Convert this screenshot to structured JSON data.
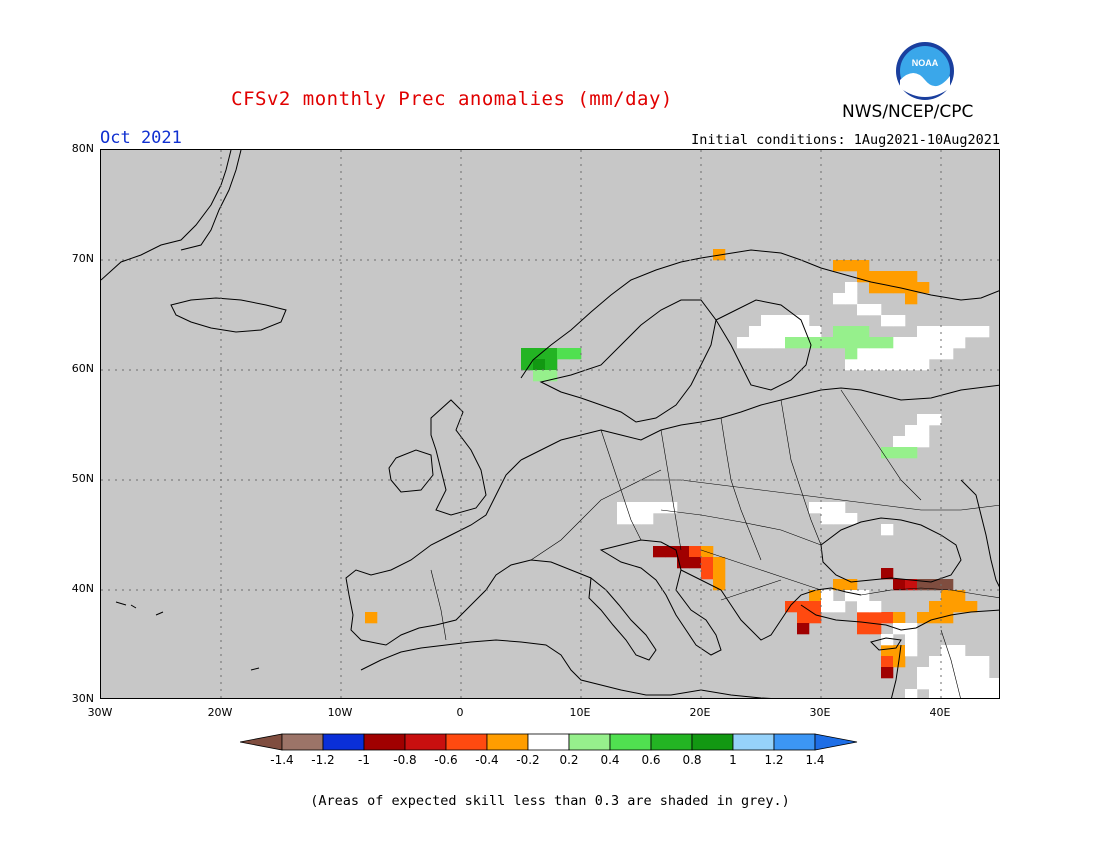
{
  "header": {
    "title": "CFSv2 monthly Prec anomalies (mm/day)",
    "agency": "NWS/NCEP/CPC",
    "logo_text": "NOAA",
    "month": "Oct 2021",
    "initial_conditions": "Initial conditions: 1Aug2021-10Aug2021"
  },
  "map": {
    "projection": "lat-lon",
    "lon_range": [
      -30,
      45
    ],
    "lat_range": [
      30,
      80
    ],
    "gridlines": "dotted",
    "no_skill_color": "#c7c7c7",
    "lat_labels": [
      "80N",
      "70N",
      "60N",
      "50N",
      "40N",
      "30N"
    ],
    "lon_labels": [
      "30W",
      "20W",
      "10W",
      "0",
      "10E",
      "20E",
      "30E",
      "40E"
    ],
    "lat_values": [
      80,
      70,
      60,
      50,
      40,
      30
    ],
    "lon_values": [
      -30,
      -20,
      -10,
      0,
      10,
      20,
      30,
      40
    ]
  },
  "anomaly_cells": [
    {
      "lon": 21.5,
      "lat": 70.5,
      "v": -0.4
    },
    {
      "lon": 31.5,
      "lat": 69.5,
      "v": -0.4
    },
    {
      "lon": 32.5,
      "lat": 69.5,
      "v": -0.4
    },
    {
      "lon": 33.5,
      "lat": 69.5,
      "v": -0.4
    },
    {
      "lon": 34.5,
      "lat": 68.5,
      "v": -0.4
    },
    {
      "lon": 35.5,
      "lat": 68.5,
      "v": -0.4
    },
    {
      "lon": 36.5,
      "lat": 68.5,
      "v": -0.4
    },
    {
      "lon": 37.5,
      "lat": 68.5,
      "v": -0.4
    },
    {
      "lon": 33.5,
      "lat": 68.5,
      "v": -0.4
    },
    {
      "lon": 34.5,
      "lat": 67.5,
      "v": -0.4
    },
    {
      "lon": 35.5,
      "lat": 67.5,
      "v": -0.4
    },
    {
      "lon": 36.5,
      "lat": 67.5,
      "v": -0.4
    },
    {
      "lon": 37.5,
      "lat": 67.5,
      "v": -0.4
    },
    {
      "lon": 38.5,
      "lat": 67.5,
      "v": -0.4
    },
    {
      "lon": 37.5,
      "lat": 66.5,
      "v": -0.4
    },
    {
      "lon": 32.5,
      "lat": 67.5,
      "v": -0.2
    },
    {
      "lon": 31.5,
      "lat": 66.5,
      "v": -0.2
    },
    {
      "lon": 32.5,
      "lat": 66.5,
      "v": -0.2
    },
    {
      "lon": 33.5,
      "lat": 65.5,
      "v": -0.2
    },
    {
      "lon": 34.5,
      "lat": 65.5,
      "v": -0.2
    },
    {
      "lon": 35.5,
      "lat": 64.5,
      "v": -0.2
    },
    {
      "lon": 36.5,
      "lat": 64.5,
      "v": -0.2
    },
    {
      "lon": 25.5,
      "lat": 64.5,
      "v": -0.2
    },
    {
      "lon": 26.5,
      "lat": 64.5,
      "v": -0.2
    },
    {
      "lon": 27.5,
      "lat": 64.5,
      "v": -0.2
    },
    {
      "lon": 28.5,
      "lat": 64.5,
      "v": -0.2
    },
    {
      "lon": 29.5,
      "lat": 63.5,
      "v": -0.2
    },
    {
      "lon": 24.5,
      "lat": 63.5,
      "v": -0.2
    },
    {
      "lon": 25.5,
      "lat": 63.5,
      "v": -0.2
    },
    {
      "lon": 26.5,
      "lat": 63.5,
      "v": -0.2
    },
    {
      "lon": 27.5,
      "lat": 63.5,
      "v": -0.2
    },
    {
      "lon": 28.5,
      "lat": 63.5,
      "v": -0.2
    },
    {
      "lon": 23.5,
      "lat": 62.5,
      "v": -0.2
    },
    {
      "lon": 24.5,
      "lat": 62.5,
      "v": -0.2
    },
    {
      "lon": 25.5,
      "lat": 62.5,
      "v": -0.2
    },
    {
      "lon": 26.5,
      "lat": 62.5,
      "v": -0.2
    },
    {
      "lon": 38.5,
      "lat": 63.5,
      "v": -0.2
    },
    {
      "lon": 39.5,
      "lat": 63.5,
      "v": -0.2
    },
    {
      "lon": 40.5,
      "lat": 63.5,
      "v": -0.2
    },
    {
      "lon": 41.5,
      "lat": 63.5,
      "v": -0.2
    },
    {
      "lon": 42.5,
      "lat": 63.5,
      "v": -0.2
    },
    {
      "lon": 43.5,
      "lat": 63.5,
      "v": -0.2
    },
    {
      "lon": 36.5,
      "lat": 62.5,
      "v": -0.2
    },
    {
      "lon": 37.5,
      "lat": 62.5,
      "v": -0.2
    },
    {
      "lon": 38.5,
      "lat": 62.5,
      "v": -0.2
    },
    {
      "lon": 39.5,
      "lat": 62.5,
      "v": -0.2
    },
    {
      "lon": 40.5,
      "lat": 62.5,
      "v": -0.2
    },
    {
      "lon": 41.5,
      "lat": 62.5,
      "v": -0.2
    },
    {
      "lon": 33.5,
      "lat": 61.5,
      "v": -0.2
    },
    {
      "lon": 34.5,
      "lat": 61.5,
      "v": -0.2
    },
    {
      "lon": 35.5,
      "lat": 61.5,
      "v": -0.2
    },
    {
      "lon": 36.5,
      "lat": 61.5,
      "v": -0.2
    },
    {
      "lon": 37.5,
      "lat": 61.5,
      "v": -0.2
    },
    {
      "lon": 38.5,
      "lat": 61.5,
      "v": -0.2
    },
    {
      "lon": 39.5,
      "lat": 61.5,
      "v": -0.2
    },
    {
      "lon": 40.5,
      "lat": 61.5,
      "v": -0.2
    },
    {
      "lon": 32.5,
      "lat": 60.5,
      "v": -0.2
    },
    {
      "lon": 33.5,
      "lat": 60.5,
      "v": -0.2
    },
    {
      "lon": 34.5,
      "lat": 60.5,
      "v": -0.2
    },
    {
      "lon": 35.5,
      "lat": 60.5,
      "v": -0.2
    },
    {
      "lon": 36.5,
      "lat": 60.5,
      "v": -0.2
    },
    {
      "lon": 37.5,
      "lat": 60.5,
      "v": -0.2
    },
    {
      "lon": 38.5,
      "lat": 60.5,
      "v": -0.2
    },
    {
      "lon": 31.5,
      "lat": 63.5,
      "v": 0.2
    },
    {
      "lon": 32.5,
      "lat": 63.5,
      "v": 0.2
    },
    {
      "lon": 33.5,
      "lat": 63.5,
      "v": 0.2
    },
    {
      "lon": 34.5,
      "lat": 62.5,
      "v": 0.2
    },
    {
      "lon": 35.5,
      "lat": 62.5,
      "v": 0.2
    },
    {
      "lon": 32.5,
      "lat": 62.5,
      "v": 0.2
    },
    {
      "lon": 33.5,
      "lat": 62.5,
      "v": 0.2
    },
    {
      "lon": 27.5,
      "lat": 62.5,
      "v": 0.2
    },
    {
      "lon": 28.5,
      "lat": 62.5,
      "v": 0.2
    },
    {
      "lon": 29.5,
      "lat": 62.5,
      "v": 0.2
    },
    {
      "lon": 30.5,
      "lat": 62.5,
      "v": 0.2
    },
    {
      "lon": 31.5,
      "lat": 62.5,
      "v": 0.2
    },
    {
      "lon": 32.5,
      "lat": 61.5,
      "v": 0.2
    },
    {
      "lon": 5.5,
      "lat": 61.5,
      "v": 0.6
    },
    {
      "lon": 6.5,
      "lat": 61.5,
      "v": 0.6
    },
    {
      "lon": 7.5,
      "lat": 61.5,
      "v": 0.6
    },
    {
      "lon": 8.5,
      "lat": 61.5,
      "v": 0.4
    },
    {
      "lon": 9.5,
      "lat": 61.5,
      "v": 0.4
    },
    {
      "lon": 5.5,
      "lat": 60.5,
      "v": 0.6
    },
    {
      "lon": 6.5,
      "lat": 60.5,
      "v": 0.8
    },
    {
      "lon": 7.5,
      "lat": 60.5,
      "v": 0.6
    },
    {
      "lon": 6.5,
      "lat": 59.5,
      "v": 0.2
    },
    {
      "lon": 7.5,
      "lat": 59.5,
      "v": 0.2
    },
    {
      "lon": 38.5,
      "lat": 55.5,
      "v": -0.2
    },
    {
      "lon": 39.5,
      "lat": 55.5,
      "v": -0.2
    },
    {
      "lon": 37.5,
      "lat": 54.5,
      "v": -0.2
    },
    {
      "lon": 38.5,
      "lat": 54.5,
      "v": -0.2
    },
    {
      "lon": 36.5,
      "lat": 53.5,
      "v": -0.2
    },
    {
      "lon": 37.5,
      "lat": 53.5,
      "v": -0.2
    },
    {
      "lon": 38.5,
      "lat": 53.5,
      "v": -0.2
    },
    {
      "lon": 35.5,
      "lat": 52.5,
      "v": 0.2
    },
    {
      "lon": 36.5,
      "lat": 52.5,
      "v": 0.2
    },
    {
      "lon": 37.5,
      "lat": 52.5,
      "v": 0.2
    },
    {
      "lon": 13.5,
      "lat": 47.5,
      "v": -0.2
    },
    {
      "lon": 14.5,
      "lat": 47.5,
      "v": -0.2
    },
    {
      "lon": 15.5,
      "lat": 47.5,
      "v": -0.2
    },
    {
      "lon": 16.5,
      "lat": 47.5,
      "v": -0.2
    },
    {
      "lon": 17.5,
      "lat": 47.5,
      "v": -0.2
    },
    {
      "lon": 13.5,
      "lat": 46.5,
      "v": -0.2
    },
    {
      "lon": 14.5,
      "lat": 46.5,
      "v": -0.2
    },
    {
      "lon": 15.5,
      "lat": 46.5,
      "v": -0.2
    },
    {
      "lon": 29.5,
      "lat": 47.5,
      "v": -0.2
    },
    {
      "lon": 30.5,
      "lat": 47.5,
      "v": -0.2
    },
    {
      "lon": 31.5,
      "lat": 47.5,
      "v": -0.2
    },
    {
      "lon": 30.5,
      "lat": 46.5,
      "v": -0.2
    },
    {
      "lon": 31.5,
      "lat": 46.5,
      "v": -0.2
    },
    {
      "lon": 32.5,
      "lat": 46.5,
      "v": -0.2
    },
    {
      "lon": 35.5,
      "lat": 45.5,
      "v": -0.2
    },
    {
      "lon": 16.5,
      "lat": 43.5,
      "v": -1.0
    },
    {
      "lon": 17.5,
      "lat": 43.5,
      "v": -1.0
    },
    {
      "lon": 18.5,
      "lat": 43.5,
      "v": -1.0
    },
    {
      "lon": 19.5,
      "lat": 43.5,
      "v": -0.6
    },
    {
      "lon": 20.5,
      "lat": 43.5,
      "v": -0.4
    },
    {
      "lon": 18.5,
      "lat": 42.5,
      "v": -1.0
    },
    {
      "lon": 19.5,
      "lat": 42.5,
      "v": -1.0
    },
    {
      "lon": 20.5,
      "lat": 42.5,
      "v": -0.6
    },
    {
      "lon": 21.5,
      "lat": 42.5,
      "v": -0.4
    },
    {
      "lon": 20.5,
      "lat": 41.5,
      "v": -0.6
    },
    {
      "lon": 21.5,
      "lat": 41.5,
      "v": -0.4
    },
    {
      "lon": 21.5,
      "lat": 40.5,
      "v": -0.4
    },
    {
      "lon": -7.5,
      "lat": 37.5,
      "v": -0.4
    },
    {
      "lon": 35.5,
      "lat": 41.5,
      "v": -1.0
    },
    {
      "lon": 36.5,
      "lat": 40.5,
      "v": -1.0
    },
    {
      "lon": 37.5,
      "lat": 40.5,
      "v": -0.8
    },
    {
      "lon": 38.5,
      "lat": 40.5,
      "v": -1.4
    },
    {
      "lon": 39.5,
      "lat": 40.5,
      "v": -1.4
    },
    {
      "lon": 40.5,
      "lat": 40.5,
      "v": -1.4
    },
    {
      "lon": 31.5,
      "lat": 40.5,
      "v": -0.4
    },
    {
      "lon": 32.5,
      "lat": 40.5,
      "v": -0.4
    },
    {
      "lon": 29.5,
      "lat": 39.5,
      "v": -0.4
    },
    {
      "lon": 28.5,
      "lat": 38.5,
      "v": -0.6
    },
    {
      "lon": 29.5,
      "lat": 38.5,
      "v": -0.6
    },
    {
      "lon": 27.5,
      "lat": 38.5,
      "v": -0.6
    },
    {
      "lon": 28.5,
      "lat": 37.5,
      "v": -0.6
    },
    {
      "lon": 29.5,
      "lat": 37.5,
      "v": -0.6
    },
    {
      "lon": 28.5,
      "lat": 36.5,
      "v": -1.0
    },
    {
      "lon": 40.5,
      "lat": 39.5,
      "v": -0.4
    },
    {
      "lon": 41.5,
      "lat": 39.5,
      "v": -0.4
    },
    {
      "lon": 39.5,
      "lat": 38.5,
      "v": -0.4
    },
    {
      "lon": 40.5,
      "lat": 38.5,
      "v": -0.4
    },
    {
      "lon": 41.5,
      "lat": 38.5,
      "v": -0.4
    },
    {
      "lon": 42.5,
      "lat": 38.5,
      "v": -0.4
    },
    {
      "lon": 39.5,
      "lat": 37.5,
      "v": -0.4
    },
    {
      "lon": 40.5,
      "lat": 37.5,
      "v": -0.4
    },
    {
      "lon": 38.5,
      "lat": 37.5,
      "v": -0.4
    },
    {
      "lon": 33.5,
      "lat": 37.5,
      "v": -0.6
    },
    {
      "lon": 34.5,
      "lat": 37.5,
      "v": -0.6
    },
    {
      "lon": 35.5,
      "lat": 37.5,
      "v": -0.6
    },
    {
      "lon": 36.5,
      "lat": 37.5,
      "v": -0.4
    },
    {
      "lon": 33.5,
      "lat": 36.5,
      "v": -0.6
    },
    {
      "lon": 34.5,
      "lat": 36.5,
      "v": -0.6
    },
    {
      "lon": 35.5,
      "lat": 34.5,
      "v": -0.4
    },
    {
      "lon": 36.5,
      "lat": 34.5,
      "v": -0.4
    },
    {
      "lon": 35.5,
      "lat": 33.5,
      "v": -0.6
    },
    {
      "lon": 36.5,
      "lat": 33.5,
      "v": -0.4
    },
    {
      "lon": 35.5,
      "lat": 32.5,
      "v": -1.0
    },
    {
      "lon": 30.5,
      "lat": 39.5,
      "v": -0.2
    },
    {
      "lon": 30.5,
      "lat": 38.5,
      "v": -0.2
    },
    {
      "lon": 31.5,
      "lat": 38.5,
      "v": -0.2
    },
    {
      "lon": 32.5,
      "lat": 39.5,
      "v": -0.2
    },
    {
      "lon": 33.5,
      "lat": 39.5,
      "v": -0.2
    },
    {
      "lon": 33.5,
      "lat": 38.5,
      "v": -0.2
    },
    {
      "lon": 34.5,
      "lat": 38.5,
      "v": -0.2
    },
    {
      "lon": 36.5,
      "lat": 36.5,
      "v": -0.2
    },
    {
      "lon": 37.5,
      "lat": 36.5,
      "v": -0.2
    },
    {
      "lon": 37.5,
      "lat": 35.5,
      "v": -0.2
    },
    {
      "lon": 37.5,
      "lat": 34.5,
      "v": -0.2
    },
    {
      "lon": 35.5,
      "lat": 35.5,
      "v": -0.2
    },
    {
      "lon": 40.5,
      "lat": 34.5,
      "v": -0.2
    },
    {
      "lon": 41.5,
      "lat": 34.5,
      "v": -0.2
    },
    {
      "lon": 42.5,
      "lat": 33.5,
      "v": -0.2
    },
    {
      "lon": 43.5,
      "lat": 33.5,
      "v": -0.2
    },
    {
      "lon": 39.5,
      "lat": 33.5,
      "v": -0.2
    },
    {
      "lon": 40.5,
      "lat": 33.5,
      "v": -0.2
    },
    {
      "lon": 41.5,
      "lat": 33.5,
      "v": -0.2
    },
    {
      "lon": 38.5,
      "lat": 32.5,
      "v": -0.2
    },
    {
      "lon": 39.5,
      "lat": 32.5,
      "v": -0.2
    },
    {
      "lon": 40.5,
      "lat": 32.5,
      "v": -0.2
    },
    {
      "lon": 41.5,
      "lat": 32.5,
      "v": -0.2
    },
    {
      "lon": 42.5,
      "lat": 32.5,
      "v": -0.2
    },
    {
      "lon": 43.5,
      "lat": 32.5,
      "v": -0.2
    },
    {
      "lon": 38.5,
      "lat": 31.5,
      "v": -0.2
    },
    {
      "lon": 39.5,
      "lat": 31.5,
      "v": -0.2
    },
    {
      "lon": 40.5,
      "lat": 31.5,
      "v": -0.2
    },
    {
      "lon": 41.5,
      "lat": 31.5,
      "v": -0.2
    },
    {
      "lon": 42.5,
      "lat": 31.5,
      "v": -0.2
    },
    {
      "lon": 43.5,
      "lat": 31.5,
      "v": -0.2
    },
    {
      "lon": 44.5,
      "lat": 31.5,
      "v": -0.2
    },
    {
      "lon": 37.5,
      "lat": 30.5,
      "v": -0.2
    },
    {
      "lon": 39.5,
      "lat": 30.5,
      "v": -0.2
    },
    {
      "lon": 40.5,
      "lat": 30.5,
      "v": -0.2
    },
    {
      "lon": 41.5,
      "lat": 30.5,
      "v": -0.2
    },
    {
      "lon": 42.5,
      "lat": 30.5,
      "v": -0.2
    },
    {
      "lon": 43.5,
      "lat": 30.5,
      "v": -0.2
    },
    {
      "lon": 44.5,
      "lat": 30.5,
      "v": -0.2
    }
  ],
  "colorbar": {
    "labels": [
      "-1.4",
      "-1.2",
      "-1",
      "-0.8",
      "-0.6",
      "-0.4",
      "-0.2",
      "0.2",
      "0.4",
      "0.6",
      "0.8",
      "1",
      "1.2",
      "1.4"
    ],
    "colors": [
      "#7f4d3f",
      "#9c7468",
      "#0a2fd8",
      "#a00000",
      "#c80f0f",
      "#ff4a10",
      "#ff9d00",
      "#ffffff",
      "#96f08c",
      "#50e050",
      "#23b423",
      "#129812",
      "#96d2fa",
      "#3c96f5",
      "#1e6ee6"
    ],
    "color_note": "first color is low-end triangle, last color is high-end triangle"
  },
  "footnote": "(Areas of expected skill less than 0.3 are shaded in grey.)"
}
